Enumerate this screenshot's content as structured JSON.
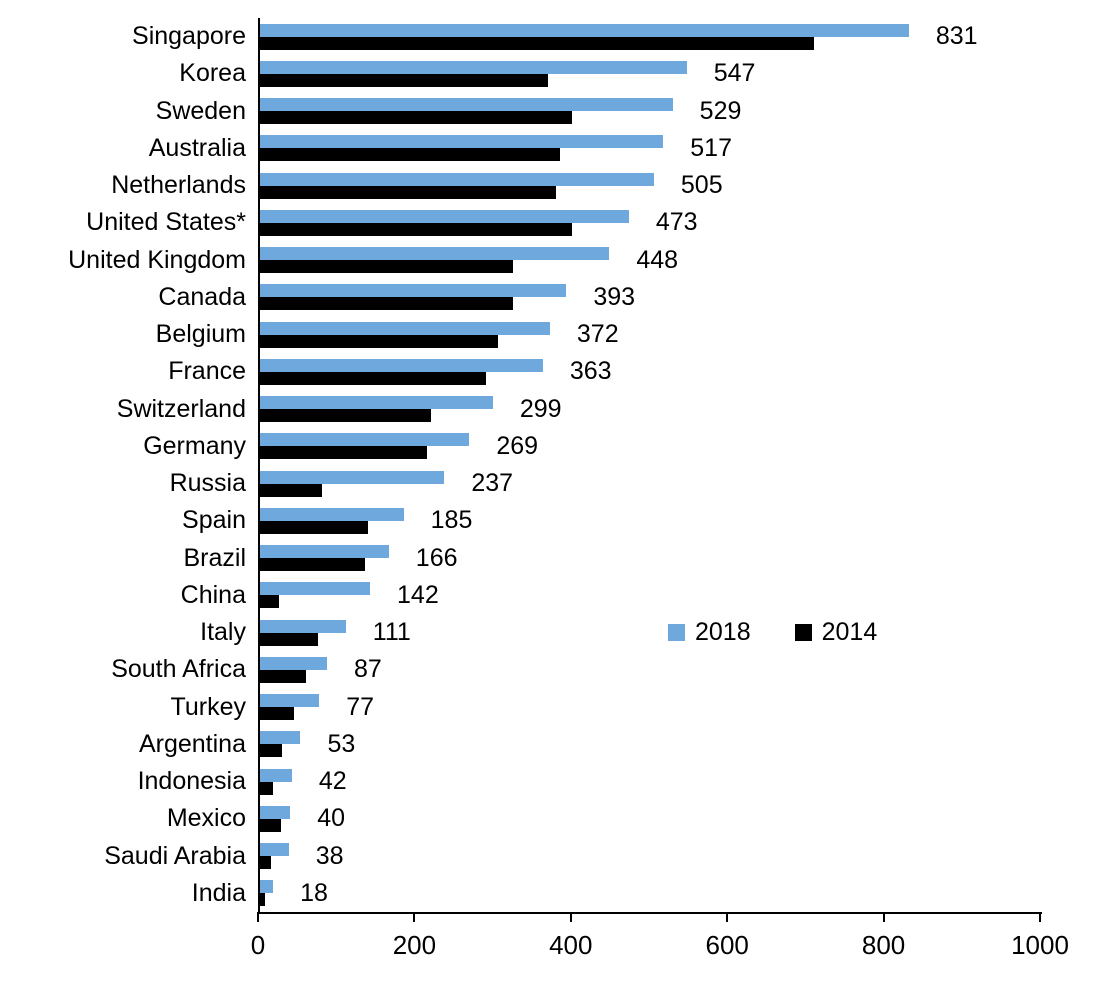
{
  "chart_data": {
    "type": "bar",
    "orientation": "horizontal",
    "title": "",
    "xlabel": "",
    "ylabel": "",
    "xlim": [
      0,
      1000
    ],
    "xticks": [
      0,
      200,
      400,
      600,
      800,
      1000
    ],
    "grid": false,
    "legend_position": "center-right",
    "categories": [
      "Singapore",
      "Korea",
      "Sweden",
      "Australia",
      "Netherlands",
      "United States*",
      "United Kingdom",
      "Canada",
      "Belgium",
      "France",
      "Switzerland",
      "Germany",
      "Russia",
      "Spain",
      "Brazil",
      "China",
      "Italy",
      "South Africa",
      "Turkey",
      "Argentina",
      "Indonesia",
      "Mexico",
      "Saudi Arabia",
      "India"
    ],
    "series": [
      {
        "name": "2018",
        "color": "#6fa8dc",
        "values": [
          831,
          547,
          529,
          517,
          505,
          473,
          448,
          393,
          372,
          363,
          299,
          269,
          237,
          185,
          166,
          142,
          111,
          87,
          77,
          53,
          42,
          40,
          38,
          18
        ]
      },
      {
        "name": "2014",
        "color": "#000000",
        "values": [
          710,
          370,
          400,
          385,
          380,
          400,
          325,
          325,
          305,
          290,
          220,
          215,
          80,
          140,
          135,
          25,
          75,
          60,
          45,
          30,
          18,
          28,
          15,
          8
        ]
      }
    ],
    "value_labels": {
      "series": "2018",
      "values": [
        "831",
        "547",
        "529",
        "517",
        "505",
        "473",
        "448",
        "393",
        "372",
        "363",
        "299",
        "269",
        "237",
        "185",
        "166",
        "142",
        "111",
        "87",
        "77",
        "53",
        "42",
        "40",
        "38",
        "18"
      ]
    }
  }
}
